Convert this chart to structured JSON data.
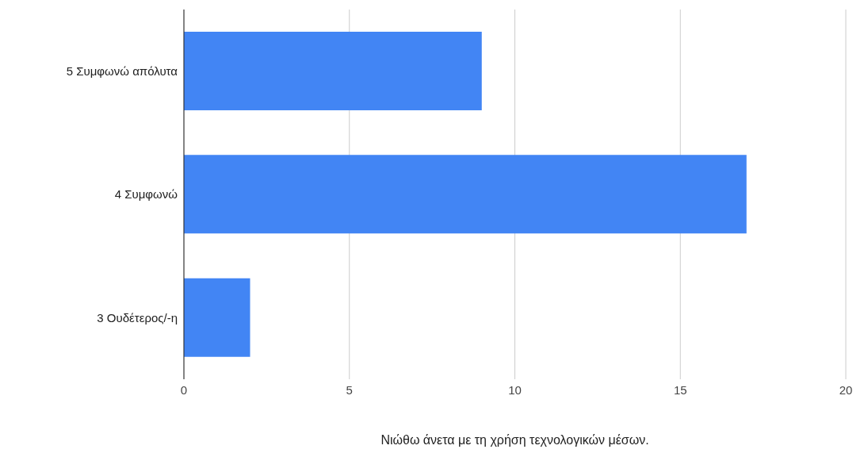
{
  "chart_data": {
    "type": "bar",
    "orientation": "horizontal",
    "xlabel": "Νιώθω άνετα με τη χρήση τεχνολογικών μέσων.",
    "categories": [
      "5 Συμφωνώ απόλυτα",
      "4 Συμφωνώ",
      "3 Ουδέτερος/-η"
    ],
    "values": [
      9,
      17,
      2
    ],
    "color": "#4285f4",
    "xlim": [
      0,
      20
    ],
    "xticks": [
      0,
      5,
      10,
      15,
      20
    ],
    "grid": "x"
  }
}
